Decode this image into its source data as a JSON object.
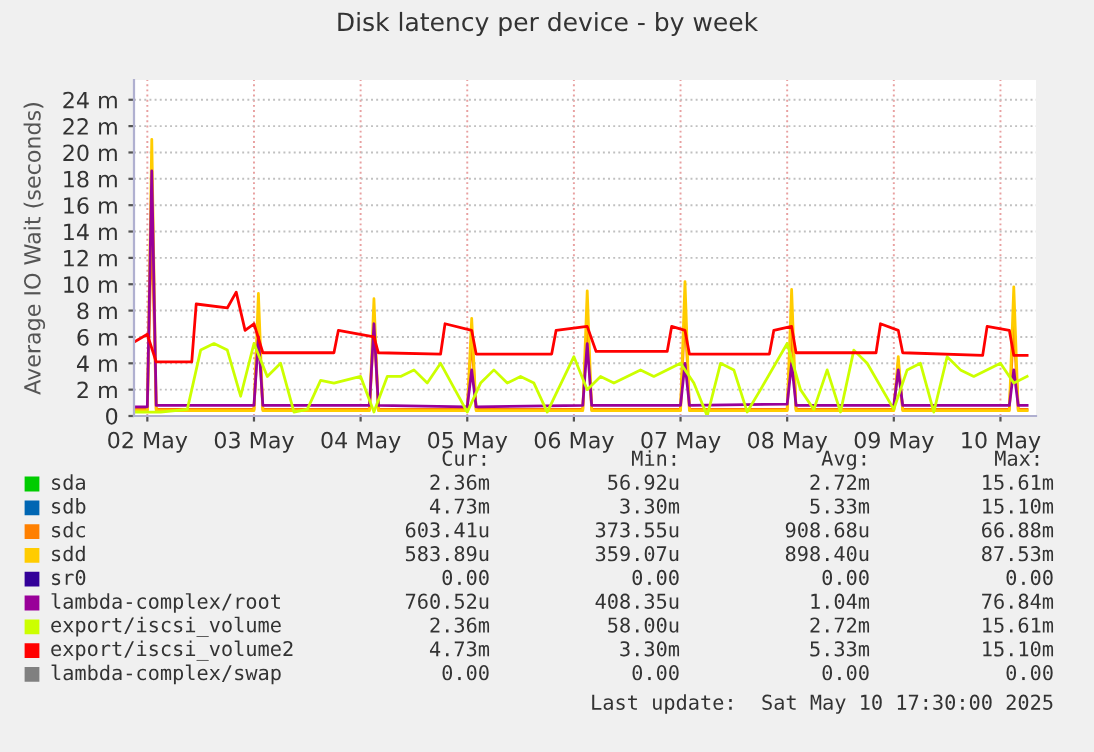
{
  "chart_data": {
    "type": "line",
    "title": "Disk latency per device - by week",
    "ylabel": "Average IO Wait (seconds)",
    "xlim": [
      "2025-05-01T21:00",
      "2025-05-10T08:00"
    ],
    "xticks": [
      {
        "value": "2025-05-02",
        "label": "02 May"
      },
      {
        "value": "2025-05-03",
        "label": "03 May"
      },
      {
        "value": "2025-05-04",
        "label": "04 May"
      },
      {
        "value": "2025-05-05",
        "label": "05 May"
      },
      {
        "value": "2025-05-06",
        "label": "06 May"
      },
      {
        "value": "2025-05-07",
        "label": "07 May"
      },
      {
        "value": "2025-05-08",
        "label": "08 May"
      },
      {
        "value": "2025-05-09",
        "label": "09 May"
      },
      {
        "value": "2025-05-10",
        "label": "10 May"
      }
    ],
    "ylim": [
      0,
      25.5
    ],
    "yticks": [
      0,
      {
        "value": 2,
        "label": "2 m"
      },
      {
        "value": 4,
        "label": "4 m"
      },
      {
        "value": 6,
        "label": "6 m"
      },
      {
        "value": 8,
        "label": "8 m"
      },
      {
        "value": 10,
        "label": "10 m"
      },
      {
        "value": 12,
        "label": "12 m"
      },
      {
        "value": 14,
        "label": "14 m"
      },
      {
        "value": 16,
        "label": "16 m"
      },
      {
        "value": 18,
        "label": "18 m"
      },
      {
        "value": 20,
        "label": "20 m"
      },
      {
        "value": 22,
        "label": "22 m"
      },
      {
        "value": 24,
        "label": "24 m"
      }
    ],
    "grid": true,
    "legend": "bottom",
    "marker": "none",
    "line_style": "solid",
    "series": [
      {
        "name": "sda",
        "color": "#00cc00"
      },
      {
        "name": "sdb",
        "color": "#0066b3"
      },
      {
        "name": "sdc",
        "color": "#ff8000",
        "x": [
          "2025-05-01T21:00",
          "2025-05-02T00:00",
          "2025-05-02T01:00",
          "2025-05-02T02:00",
          "2025-05-03T00:00",
          "2025-05-03T01:00",
          "2025-05-03T02:00",
          "2025-05-04T02:00",
          "2025-05-04T03:00",
          "2025-05-04T04:00",
          "2025-05-05T00:00",
          "2025-05-05T01:00",
          "2025-05-05T02:00",
          "2025-05-06T02:00",
          "2025-05-06T03:00",
          "2025-05-06T04:00",
          "2025-05-07T00:00",
          "2025-05-07T01:00",
          "2025-05-07T02:00",
          "2025-05-08T00:00",
          "2025-05-08T01:00",
          "2025-05-08T02:00",
          "2025-05-09T00:00",
          "2025-05-09T01:00",
          "2025-05-09T02:00",
          "2025-05-10T02:00",
          "2025-05-10T03:00",
          "2025-05-10T04:00",
          "2025-05-10T06:00"
        ],
        "values": [
          0.5,
          0.5,
          15,
          0.5,
          0.5,
          7,
          0.5,
          0.5,
          7,
          0.5,
          0.5,
          6,
          0.5,
          0.5,
          7,
          0.5,
          0.5,
          8,
          0.5,
          0.5,
          7,
          0.5,
          0.5,
          4,
          0.5,
          0.5,
          7,
          0.5,
          0.5
        ]
      },
      {
        "name": "sdd",
        "color": "#ffcc00",
        "x": [
          "2025-05-01T21:00",
          "2025-05-02T00:00",
          "2025-05-02T01:00",
          "2025-05-02T02:00",
          "2025-05-03T00:00",
          "2025-05-03T01:00",
          "2025-05-03T02:00",
          "2025-05-04T02:00",
          "2025-05-04T03:00",
          "2025-05-04T04:00",
          "2025-05-05T00:00",
          "2025-05-05T01:00",
          "2025-05-05T02:00",
          "2025-05-06T02:00",
          "2025-05-06T03:00",
          "2025-05-06T04:00",
          "2025-05-07T00:00",
          "2025-05-07T01:00",
          "2025-05-07T02:00",
          "2025-05-08T00:00",
          "2025-05-08T01:00",
          "2025-05-08T02:00",
          "2025-05-09T00:00",
          "2025-05-09T01:00",
          "2025-05-09T02:00",
          "2025-05-10T02:00",
          "2025-05-10T03:00",
          "2025-05-10T04:00",
          "2025-05-10T06:00"
        ],
        "values": [
          0.4,
          0.4,
          21,
          0.4,
          0.4,
          9.3,
          0.4,
          0.4,
          8.9,
          0.4,
          0.4,
          7.4,
          0.4,
          0.4,
          9.5,
          0.4,
          0.4,
          10.2,
          0.4,
          0.4,
          9.6,
          0.4,
          0.4,
          4.5,
          0.4,
          0.4,
          9.8,
          0.4,
          0.4
        ]
      },
      {
        "name": "sr0",
        "color": "#330099"
      },
      {
        "name": "lambda-complex/root",
        "color": "#990099",
        "x": [
          "2025-05-01T21:00",
          "2025-05-02T00:00",
          "2025-05-02T01:00",
          "2025-05-02T02:00",
          "2025-05-03T00:00",
          "2025-05-03T01:00",
          "2025-05-03T02:00",
          "2025-05-04T02:00",
          "2025-05-04T03:00",
          "2025-05-04T04:00",
          "2025-05-05T00:00",
          "2025-05-05T01:00",
          "2025-05-05T02:00",
          "2025-05-06T02:00",
          "2025-05-06T03:00",
          "2025-05-06T04:00",
          "2025-05-07T00:00",
          "2025-05-07T01:00",
          "2025-05-07T02:00",
          "2025-05-08T00:00",
          "2025-05-08T01:00",
          "2025-05-08T02:00",
          "2025-05-09T00:00",
          "2025-05-09T01:00",
          "2025-05-09T02:00",
          "2025-05-10T02:00",
          "2025-05-10T03:00",
          "2025-05-10T04:00",
          "2025-05-10T06:00"
        ],
        "values": [
          0.7,
          0.7,
          18.6,
          0.8,
          0.8,
          6,
          0.8,
          0.8,
          7,
          0.8,
          0.7,
          3.5,
          0.7,
          0.8,
          5.5,
          0.8,
          0.8,
          4,
          0.8,
          0.9,
          4,
          0.8,
          0.8,
          3.5,
          0.8,
          0.8,
          3.5,
          0.8,
          0.8
        ]
      },
      {
        "name": "export/iscsi_volume",
        "color": "#ccff00",
        "x": [
          "2025-05-01T21:00",
          "2025-05-02T03:00",
          "2025-05-02T09:00",
          "2025-05-02T12:00",
          "2025-05-02T15:00",
          "2025-05-02T18:00",
          "2025-05-02T21:00",
          "2025-05-03T00:00",
          "2025-05-03T03:00",
          "2025-05-03T06:00",
          "2025-05-03T09:00",
          "2025-05-03T12:00",
          "2025-05-03T15:00",
          "2025-05-03T18:00",
          "2025-05-04T00:00",
          "2025-05-04T03:00",
          "2025-05-04T06:00",
          "2025-05-04T09:00",
          "2025-05-04T12:00",
          "2025-05-04T15:00",
          "2025-05-04T18:00",
          "2025-05-05T00:00",
          "2025-05-05T03:00",
          "2025-05-05T06:00",
          "2025-05-05T09:00",
          "2025-05-05T12:00",
          "2025-05-05T15:00",
          "2025-05-05T18:00",
          "2025-05-06T00:00",
          "2025-05-06T03:00",
          "2025-05-06T06:00",
          "2025-05-06T09:00",
          "2025-05-06T12:00",
          "2025-05-06T15:00",
          "2025-05-06T18:00",
          "2025-05-07T00:00",
          "2025-05-07T03:00",
          "2025-05-07T06:00",
          "2025-05-07T09:00",
          "2025-05-07T12:00",
          "2025-05-07T15:00",
          "2025-05-07T18:00",
          "2025-05-08T00:00",
          "2025-05-08T03:00",
          "2025-05-08T06:00",
          "2025-05-08T09:00",
          "2025-05-08T12:00",
          "2025-05-08T15:00",
          "2025-05-08T18:00",
          "2025-05-09T00:00",
          "2025-05-09T03:00",
          "2025-05-09T06:00",
          "2025-05-09T09:00",
          "2025-05-09T12:00",
          "2025-05-09T15:00",
          "2025-05-09T18:00",
          "2025-05-10T00:00",
          "2025-05-10T03:00",
          "2025-05-10T06:00"
        ],
        "values": [
          0.3,
          0.3,
          0.5,
          5,
          5.5,
          5,
          1.5,
          5.5,
          3,
          4,
          0.3,
          0.5,
          2.7,
          2.5,
          3,
          0.3,
          3,
          3,
          3.5,
          2.5,
          4,
          0.3,
          2.5,
          3.5,
          2.5,
          3,
          2.5,
          0.3,
          4.5,
          2,
          3,
          2.5,
          3,
          3.5,
          3,
          4,
          2.5,
          0,
          4,
          3.5,
          0.3,
          2,
          5.5,
          2,
          0.5,
          3.5,
          0.3,
          5,
          4,
          0.5,
          3.5,
          4,
          0.3,
          4.5,
          3.5,
          3,
          4,
          2.5,
          3
        ]
      },
      {
        "name": "export/iscsi_volume2",
        "color": "#ff0000",
        "x": [
          "2025-05-01T21:00",
          "2025-05-02T00:00",
          "2025-05-02T02:00",
          "2025-05-02T10:00",
          "2025-05-02T11:00",
          "2025-05-02T18:00",
          "2025-05-02T20:00",
          "2025-05-02T22:00",
          "2025-05-03T00:00",
          "2025-05-03T02:00",
          "2025-05-03T18:00",
          "2025-05-03T19:00",
          "2025-05-04T03:00",
          "2025-05-04T04:00",
          "2025-05-04T18:00",
          "2025-05-04T19:00",
          "2025-05-05T01:00",
          "2025-05-05T02:00",
          "2025-05-05T19:00",
          "2025-05-05T20:00",
          "2025-05-06T03:00",
          "2025-05-06T05:00",
          "2025-05-06T21:00",
          "2025-05-06T22:00",
          "2025-05-07T01:00",
          "2025-05-07T02:00",
          "2025-05-07T20:00",
          "2025-05-07T21:00",
          "2025-05-08T01:00",
          "2025-05-08T02:00",
          "2025-05-08T20:00",
          "2025-05-08T21:00",
          "2025-05-09T01:00",
          "2025-05-09T02:00",
          "2025-05-09T20:00",
          "2025-05-09T21:00",
          "2025-05-10T02:00",
          "2025-05-10T03:00",
          "2025-05-10T06:00"
        ],
        "values": [
          5.6,
          6.2,
          4.1,
          4.1,
          8.5,
          8.2,
          9.4,
          6.5,
          7,
          4.8,
          4.8,
          6.5,
          6,
          4.8,
          4.7,
          7,
          6.5,
          4.7,
          4.7,
          6.5,
          6.8,
          4.9,
          4.9,
          6.8,
          6.5,
          4.7,
          4.7,
          6.5,
          6.8,
          4.8,
          4.8,
          7,
          6.5,
          4.8,
          4.6,
          6.8,
          6.5,
          4.6,
          4.6
        ]
      },
      {
        "name": "lambda-complex/swap",
        "color": "#808080"
      }
    ],
    "annotations": [
      "Cur:",
      "Min:",
      "Avg:",
      "Max:",
      "2.36m",
      "56.92u",
      "2.72m",
      "15.61m",
      "4.73m",
      "3.30m",
      "5.33m",
      "15.10m",
      "603.41u",
      "373.55u",
      "908.68u",
      "66.88m",
      "583.89u",
      "359.07u",
      "898.40u",
      "87.53m",
      "0.00",
      "0.00",
      "0.00",
      "0.00",
      "760.52u",
      "408.35u",
      "1.04m",
      "76.84m",
      "2.36m",
      "58.00u",
      "2.72m",
      "15.61m",
      "4.73m",
      "3.30m",
      "5.33m",
      "15.10m",
      "0.00",
      "0.00",
      "0.00",
      "0.00",
      "Last update:  Sat May 10 17:30:00 2025"
    ]
  }
}
